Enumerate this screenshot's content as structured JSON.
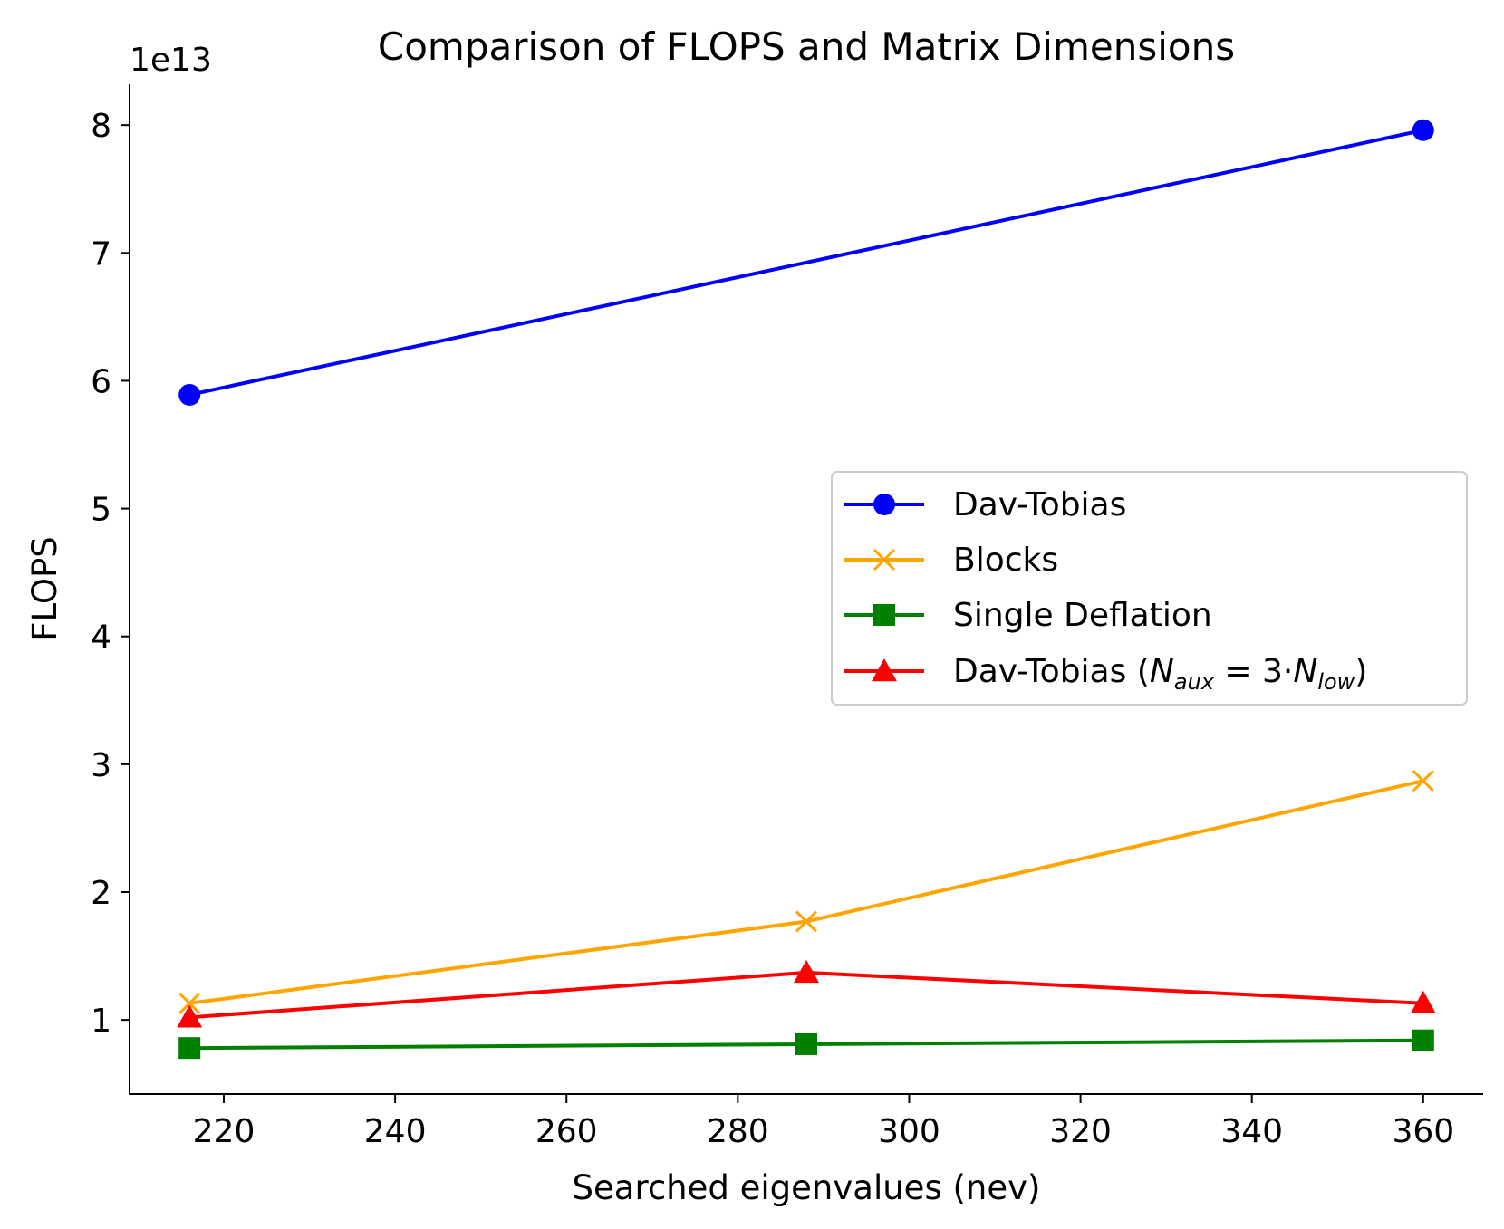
{
  "chart_data": {
    "type": "line",
    "title": "Comparison of FLOPS and Matrix Dimensions",
    "xlabel": "Searched eigenvalues (nev)",
    "ylabel": "FLOPS",
    "y_offset_label": "1e13",
    "y_scale_multiplier": 10000000000000,
    "xlim": [
      209,
      367
    ],
    "ylim": [
      0.42,
      8.32
    ],
    "x_ticks": [
      220,
      240,
      260,
      280,
      300,
      320,
      340,
      360
    ],
    "y_ticks": [
      1,
      2,
      3,
      4,
      5,
      6,
      7,
      8
    ],
    "x_tick_labels": [
      "220",
      "240",
      "260",
      "280",
      "300",
      "320",
      "340",
      "360"
    ],
    "y_tick_labels": [
      "1",
      "2",
      "3",
      "4",
      "5",
      "6",
      "7",
      "8"
    ],
    "grid": false,
    "legend_position": "center-right",
    "x": [
      216,
      288,
      360
    ],
    "series": [
      {
        "name": "Dav-Tobias",
        "color": "#0000ff",
        "marker": "circle",
        "values": [
          5.89,
          null,
          7.96
        ]
      },
      {
        "name": "Blocks",
        "color": "#ffa500",
        "marker": "x",
        "values": [
          1.13,
          1.77,
          2.87
        ]
      },
      {
        "name": "Single Deflation",
        "color": "#008000",
        "marker": "square",
        "values": [
          0.78,
          0.81,
          0.84
        ]
      },
      {
        "name": "Dav-Tobias (N_aux = 3·N_low)",
        "color": "#ff0000",
        "marker": "triangle",
        "values": [
          1.02,
          1.37,
          1.13
        ]
      }
    ]
  },
  "legend": {
    "items": [
      {
        "label": "Dav-Tobias"
      },
      {
        "label": "Blocks"
      },
      {
        "label": "Single Deflation"
      },
      {
        "label_prefix": "Dav-Tobias (",
        "label_n1": "N",
        "label_sub1": "aux",
        "label_mid": " = 3·",
        "label_n2": "N",
        "label_sub2": "low",
        "label_suffix": ")"
      }
    ]
  }
}
